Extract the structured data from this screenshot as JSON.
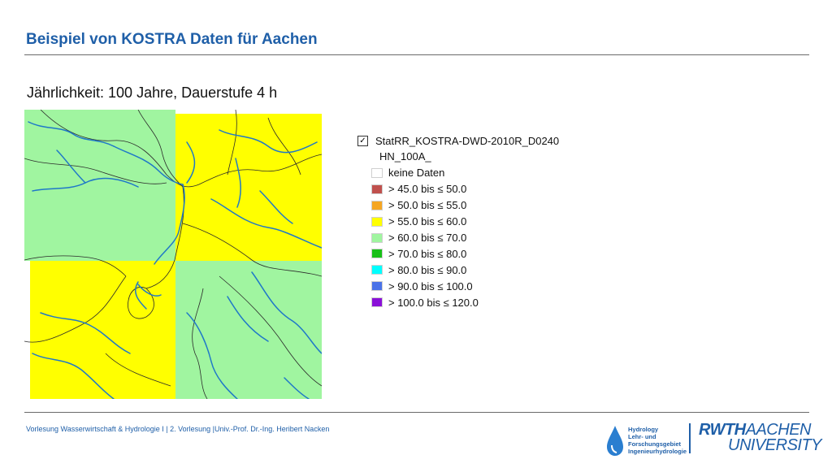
{
  "slide": {
    "title": "Beispiel von KOSTRA Daten für Aachen",
    "subtitle": "Jährlichkeit: 100 Jahre, Dauerstufe 4 h"
  },
  "legend": {
    "layer_name": "StatRR_KOSTRA-DWD-2010R_D0240",
    "field_name": "HN_100A_",
    "classes": [
      {
        "label": "keine Daten",
        "color": "#ffffff"
      },
      {
        "label": "> 45.0 bis ≤ 50.0",
        "color": "#c0504d"
      },
      {
        "label": "> 50.0 bis ≤ 55.0",
        "color": "#f5a623"
      },
      {
        "label": "> 55.0 bis ≤ 60.0",
        "color": "#ffff00"
      },
      {
        "label": "> 60.0 bis ≤ 70.0",
        "color": "#a0f5a0"
      },
      {
        "label": "> 70.0 bis ≤ 80.0",
        "color": "#18c018"
      },
      {
        "label": "> 80.0 bis ≤ 90.0",
        "color": "#00ffff"
      },
      {
        "label": "> 90.0 bis ≤ 100.0",
        "color": "#4a72e8"
      },
      {
        "label": "> 100.0 bis ≤ 120.0",
        "color": "#8a10d8"
      }
    ]
  },
  "footer": {
    "text": "Vorlesung Wasserwirtschaft & Hydrologie I | 2. Vorlesung |Univ.-Prof. Dr.-Ing. Heribert Nacken"
  },
  "logos": {
    "hydro_lines": [
      "Hydrology",
      "Lehr- und",
      "Forschungsgebiet",
      "Ingenieurhydrologie"
    ],
    "rwth_bold": "RWTH",
    "rwth_thin": "AACHEN",
    "rwth_line2": "UNIVERSITY"
  },
  "colors": {
    "accent": "#1f5fa8",
    "river": "#1f78c8",
    "boundary": "#2a2a2a"
  }
}
